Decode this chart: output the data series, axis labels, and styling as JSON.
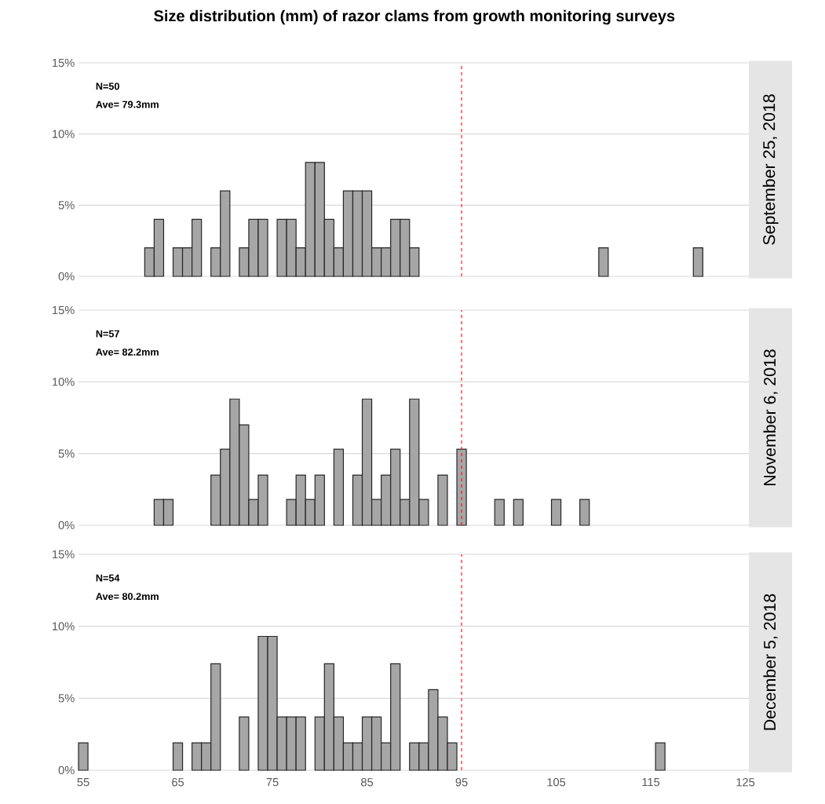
{
  "chart_data": [
    {
      "type": "bar",
      "title": "Size distribution (mm) of razor clams from growth monitoring surveys",
      "y2label": "September 25, 2018",
      "annotations": [
        "N=50",
        "Ave= 79.3mm"
      ],
      "x": [
        62,
        63,
        65,
        66,
        67,
        69,
        70,
        72,
        73,
        74,
        76,
        77,
        78,
        79,
        80,
        81,
        82,
        83,
        84,
        85,
        86,
        87,
        88,
        89,
        90,
        110,
        120
      ],
      "values": [
        2,
        4,
        2,
        2,
        4,
        2,
        6,
        2,
        4,
        4,
        4,
        4,
        2,
        8,
        8,
        4,
        2,
        6,
        6,
        6,
        2,
        2,
        4,
        4,
        2,
        2,
        2
      ],
      "color": "#a6a6a6",
      "xlim": [
        54.5,
        125.5
      ],
      "ylim": [
        0,
        15
      ],
      "yticks": [
        {
          "value": 0,
          "label": "0%"
        },
        {
          "value": 5,
          "label": "5%"
        },
        {
          "value": 10,
          "label": "10%"
        },
        {
          "value": 15,
          "label": "15%"
        }
      ],
      "grid": "y",
      "tick_labels": "y",
      "ref_lines": [
        {
          "axis": "x",
          "value": 95,
          "color": "#ff0000",
          "line_style": "dashed"
        }
      ]
    },
    {
      "type": "bar",
      "y2label": "November 6, 2018",
      "annotations": [
        "N=57",
        "Ave= 82.2mm"
      ],
      "x": [
        63,
        64,
        69,
        70,
        71,
        72,
        73,
        74,
        77,
        78,
        79,
        80,
        82,
        84,
        85,
        86,
        87,
        88,
        89,
        90,
        91,
        93,
        95,
        99,
        101,
        105,
        108
      ],
      "values": [
        1.8,
        1.8,
        3.5,
        5.3,
        8.8,
        7.0,
        1.8,
        3.5,
        1.8,
        3.5,
        1.8,
        3.5,
        5.3,
        3.5,
        8.8,
        1.8,
        3.5,
        5.3,
        1.8,
        8.8,
        1.8,
        3.5,
        5.3,
        1.8,
        1.8,
        1.8,
        1.8
      ],
      "color": "#a6a6a6",
      "xlim": [
        54.5,
        125.5
      ],
      "ylim": [
        0,
        15
      ],
      "yticks": [
        {
          "value": 0,
          "label": "0%"
        },
        {
          "value": 5,
          "label": "5%"
        },
        {
          "value": 10,
          "label": "10%"
        },
        {
          "value": 15,
          "label": "15%"
        }
      ],
      "grid": "y",
      "tick_labels": "y",
      "ref_lines": [
        {
          "axis": "x",
          "value": 95,
          "color": "#ff0000",
          "line_style": "dashed"
        }
      ]
    },
    {
      "type": "bar",
      "y2label": "December 5, 2018",
      "annotations": [
        "N=54",
        "Ave= 80.2mm"
      ],
      "x": [
        55,
        65,
        67,
        68,
        69,
        72,
        74,
        75,
        76,
        77,
        78,
        80,
        81,
        82,
        83,
        84,
        85,
        86,
        87,
        88,
        90,
        91,
        92,
        93,
        94,
        116
      ],
      "values": [
        1.9,
        1.9,
        1.9,
        1.9,
        7.4,
        3.7,
        9.3,
        9.3,
        3.7,
        3.7,
        3.7,
        3.7,
        7.4,
        3.7,
        1.9,
        1.9,
        3.7,
        3.7,
        1.9,
        7.4,
        1.9,
        1.9,
        5.6,
        3.7,
        1.9,
        1.9
      ],
      "color": "#a6a6a6",
      "xlim": [
        54.5,
        125.5
      ],
      "ylim": [
        0,
        15
      ],
      "xticks": [
        55,
        65,
        75,
        85,
        95,
        105,
        115,
        125
      ],
      "yticks": [
        {
          "value": 0,
          "label": "0%"
        },
        {
          "value": 5,
          "label": "5%"
        },
        {
          "value": 10,
          "label": "10%"
        },
        {
          "value": 15,
          "label": "15%"
        }
      ],
      "grid": "y",
      "ref_lines": [
        {
          "axis": "x",
          "value": 95,
          "color": "#ff0000",
          "line_style": "dashed"
        }
      ]
    }
  ]
}
